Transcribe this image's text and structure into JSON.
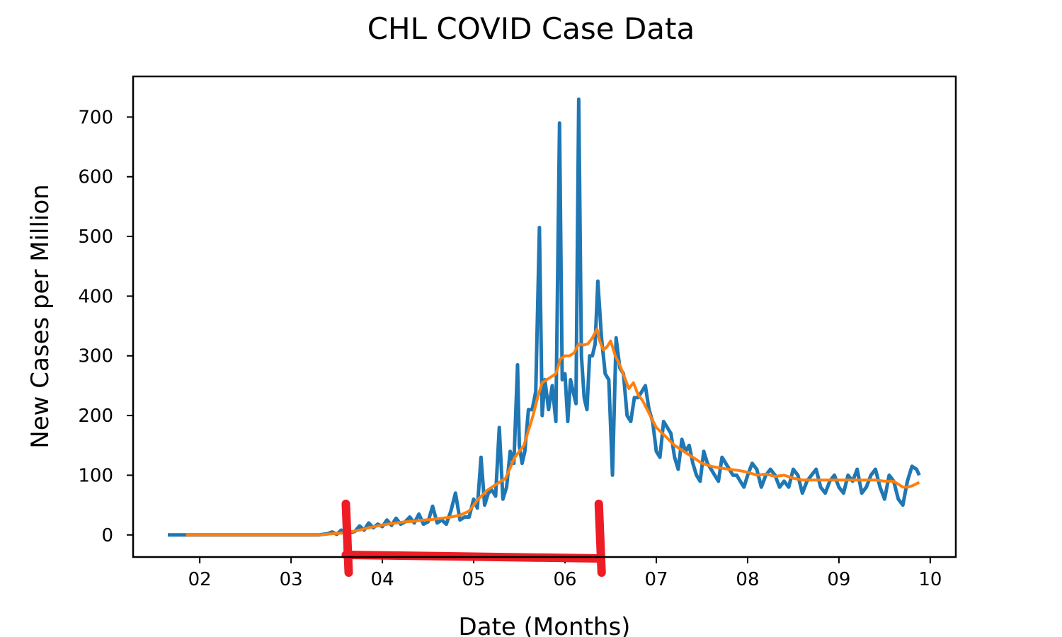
{
  "chart_data": {
    "type": "line",
    "title": "CHL COVID Case Data",
    "xlabel": "Date (Months)",
    "ylabel": "New Cases per Million",
    "x_ticks": [
      {
        "value": 2,
        "label": "02"
      },
      {
        "value": 3,
        "label": "03"
      },
      {
        "value": 4,
        "label": "04"
      },
      {
        "value": 5,
        "label": "05"
      },
      {
        "value": 6,
        "label": "06"
      },
      {
        "value": 7,
        "label": "07"
      },
      {
        "value": 8,
        "label": "08"
      },
      {
        "value": 9,
        "label": "09"
      },
      {
        "value": 10,
        "label": "10"
      }
    ],
    "y_ticks": [
      {
        "value": 0,
        "label": "0"
      },
      {
        "value": 100,
        "label": "100"
      },
      {
        "value": 200,
        "label": "200"
      },
      {
        "value": 300,
        "label": "300"
      },
      {
        "value": 400,
        "label": "400"
      },
      {
        "value": 500,
        "label": "500"
      },
      {
        "value": 600,
        "label": "600"
      },
      {
        "value": 700,
        "label": "700"
      }
    ],
    "xlim": [
      1.27,
      10.28
    ],
    "ylim": [
      -37,
      768
    ],
    "grid": false,
    "series": [
      {
        "color": "#1f77b4",
        "x": [
          1.65,
          1.85,
          2.0,
          2.5,
          3.0,
          3.3,
          3.4,
          3.45,
          3.5,
          3.55,
          3.58,
          3.62,
          3.66,
          3.7,
          3.75,
          3.8,
          3.85,
          3.9,
          3.95,
          4.0,
          4.05,
          4.1,
          4.15,
          4.2,
          4.25,
          4.3,
          4.35,
          4.4,
          4.45,
          4.5,
          4.55,
          4.6,
          4.65,
          4.7,
          4.75,
          4.8,
          4.85,
          4.9,
          4.95,
          5.0,
          5.04,
          5.08,
          5.12,
          5.16,
          5.2,
          5.24,
          5.28,
          5.32,
          5.36,
          5.4,
          5.44,
          5.48,
          5.5,
          5.53,
          5.56,
          5.6,
          5.64,
          5.68,
          5.72,
          5.75,
          5.78,
          5.82,
          5.86,
          5.9,
          5.94,
          5.97,
          6.0,
          6.03,
          6.06,
          6.09,
          6.12,
          6.15,
          6.18,
          6.21,
          6.24,
          6.27,
          6.3,
          6.33,
          6.36,
          6.4,
          6.44,
          6.48,
          6.52,
          6.56,
          6.6,
          6.64,
          6.68,
          6.72,
          6.76,
          6.8,
          6.84,
          6.88,
          6.92,
          6.96,
          7.0,
          7.04,
          7.08,
          7.12,
          7.16,
          7.2,
          7.24,
          7.28,
          7.32,
          7.36,
          7.4,
          7.44,
          7.48,
          7.52,
          7.56,
          7.6,
          7.64,
          7.68,
          7.72,
          7.76,
          7.8,
          7.84,
          7.88,
          7.92,
          7.96,
          8.0,
          8.05,
          8.1,
          8.15,
          8.2,
          8.25,
          8.3,
          8.35,
          8.4,
          8.45,
          8.5,
          8.55,
          8.6,
          8.65,
          8.7,
          8.75,
          8.8,
          8.85,
          8.9,
          8.95,
          9.0,
          9.05,
          9.1,
          9.15,
          9.2,
          9.25,
          9.3,
          9.35,
          9.4,
          9.45,
          9.5,
          9.55,
          9.6,
          9.65,
          9.7,
          9.75,
          9.8,
          9.85,
          9.88
        ],
        "y": [
          0,
          0,
          0,
          0,
          0,
          0,
          2,
          5,
          1,
          8,
          3,
          10,
          4,
          6,
          15,
          8,
          20,
          12,
          18,
          14,
          25,
          16,
          28,
          18,
          22,
          30,
          20,
          35,
          18,
          22,
          48,
          20,
          25,
          18,
          40,
          70,
          25,
          30,
          30,
          60,
          45,
          130,
          50,
          70,
          75,
          65,
          180,
          60,
          80,
          140,
          120,
          285,
          150,
          120,
          140,
          210,
          210,
          240,
          515,
          200,
          260,
          210,
          250,
          190,
          690,
          260,
          270,
          190,
          260,
          240,
          220,
          730,
          300,
          230,
          210,
          300,
          300,
          320,
          425,
          330,
          270,
          260,
          100,
          330,
          280,
          270,
          200,
          190,
          230,
          230,
          240,
          250,
          210,
          190,
          140,
          130,
          190,
          180,
          170,
          130,
          110,
          160,
          140,
          150,
          120,
          100,
          90,
          140,
          120,
          110,
          100,
          90,
          130,
          120,
          110,
          100,
          100,
          90,
          80,
          100,
          120,
          110,
          80,
          100,
          110,
          100,
          80,
          90,
          80,
          110,
          100,
          70,
          90,
          100,
          110,
          80,
          70,
          90,
          100,
          80,
          70,
          100,
          90,
          110,
          70,
          80,
          100,
          110,
          80,
          60,
          100,
          90,
          60,
          50,
          90,
          115,
          110,
          100
        ],
        "name": ""
      },
      {
        "color": "#ff7f0e",
        "x": [
          1.85,
          2.0,
          2.5,
          3.0,
          3.3,
          3.45,
          3.55,
          3.65,
          3.75,
          3.85,
          3.95,
          4.05,
          4.15,
          4.25,
          4.35,
          4.45,
          4.55,
          4.65,
          4.75,
          4.85,
          4.95,
          5.05,
          5.15,
          5.25,
          5.35,
          5.45,
          5.55,
          5.6,
          5.65,
          5.7,
          5.75,
          5.8,
          5.85,
          5.9,
          5.95,
          6.0,
          6.05,
          6.1,
          6.15,
          6.2,
          6.25,
          6.3,
          6.35,
          6.38,
          6.42,
          6.46,
          6.5,
          6.55,
          6.6,
          6.65,
          6.7,
          6.75,
          6.8,
          6.85,
          6.9,
          6.95,
          7.0,
          7.1,
          7.2,
          7.3,
          7.4,
          7.5,
          7.6,
          7.7,
          7.8,
          7.9,
          8.0,
          8.1,
          8.2,
          8.3,
          8.4,
          8.5,
          8.6,
          8.7,
          8.8,
          8.9,
          9.0,
          9.1,
          9.2,
          9.3,
          9.4,
          9.5,
          9.6,
          9.65,
          9.7,
          9.75,
          9.8,
          9.88
        ],
        "y": [
          0,
          0,
          0,
          0,
          0,
          2,
          3,
          5,
          8,
          12,
          15,
          18,
          20,
          22,
          23,
          25,
          26,
          28,
          30,
          33,
          40,
          60,
          75,
          85,
          95,
          130,
          150,
          175,
          200,
          230,
          255,
          260,
          265,
          270,
          295,
          300,
          300,
          305,
          320,
          318,
          320,
          330,
          345,
          325,
          310,
          315,
          325,
          300,
          285,
          265,
          245,
          255,
          235,
          225,
          210,
          195,
          180,
          165,
          150,
          140,
          130,
          120,
          115,
          112,
          110,
          108,
          105,
          100,
          102,
          98,
          100,
          95,
          92,
          92,
          92,
          92,
          92,
          92,
          92,
          92,
          92,
          90,
          90,
          85,
          80,
          80,
          82,
          88
        ],
        "name": ""
      }
    ],
    "annotation": {
      "type": "bracket",
      "color": "#ee1c25",
      "x_start": 3.6,
      "x_end": 6.37,
      "y_bar": -37,
      "y_top": 52
    }
  }
}
